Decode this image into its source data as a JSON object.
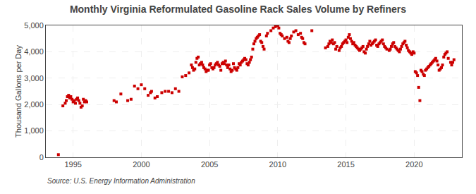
{
  "chart_data": {
    "type": "scatter",
    "title": "Monthly Virginia Reformulated Gasoline Rack Sales Volume by Refiners",
    "ylabel": "Thousand Gallons per Day",
    "annotations": [
      "Source: U.S. Energy Information Administration"
    ],
    "color": "#cc0000",
    "marker": "square",
    "grid": true,
    "xlim": [
      1993.0,
      2023.5
    ],
    "xticks": [
      1995,
      2000,
      2005,
      2010,
      2015,
      2020
    ],
    "ylim": [
      0,
      5000
    ],
    "yticks": [
      0,
      {
        "value": 1000,
        "label": "1,000"
      },
      {
        "value": 2000,
        "label": "2,000"
      },
      {
        "value": 3000,
        "label": "3,000"
      },
      {
        "value": 4000,
        "label": "4,000"
      },
      {
        "value": 5000,
        "label": "5,000"
      }
    ],
    "x": [
      1993.92,
      1994.25,
      1994.42,
      1994.5,
      1994.58,
      1994.67,
      1994.75,
      1994.83,
      1994.92,
      1995.0,
      1995.08,
      1995.17,
      1995.25,
      1995.33,
      1995.42,
      1995.5,
      1995.58,
      1995.67,
      1995.75,
      1995.83,
      1995.92,
      1996.0,
      1998.0,
      1998.17,
      1998.5,
      1999.0,
      1999.25,
      1999.5,
      1999.75,
      2000.0,
      2000.25,
      2000.5,
      2000.67,
      2000.75,
      2001.0,
      2001.17,
      2001.5,
      2001.75,
      2002.0,
      2002.25,
      2002.5,
      2002.75,
      2003.0,
      2003.25,
      2003.5,
      2003.67,
      2003.75,
      2003.83,
      2003.92,
      2004.0,
      2004.08,
      2004.17,
      2004.25,
      2004.33,
      2004.42,
      2004.5,
      2004.58,
      2004.67,
      2004.75,
      2004.83,
      2004.92,
      2005.0,
      2005.08,
      2005.17,
      2005.25,
      2005.33,
      2005.42,
      2005.5,
      2005.58,
      2005.67,
      2005.75,
      2005.83,
      2005.92,
      2006.0,
      2006.08,
      2006.17,
      2006.25,
      2006.33,
      2006.42,
      2006.5,
      2006.58,
      2006.67,
      2006.75,
      2006.83,
      2006.92,
      2007.0,
      2007.08,
      2007.17,
      2007.25,
      2007.33,
      2007.42,
      2007.5,
      2007.58,
      2007.67,
      2007.75,
      2007.83,
      2007.92,
      2008.0,
      2008.08,
      2008.17,
      2008.25,
      2008.33,
      2008.42,
      2008.5,
      2008.58,
      2008.67,
      2008.75,
      2008.83,
      2008.92,
      2009.0,
      2009.17,
      2009.25,
      2009.5,
      2009.67,
      2009.83,
      2010.0,
      2010.08,
      2010.17,
      2010.25,
      2010.33,
      2010.5,
      2010.67,
      2010.75,
      2010.83,
      2010.92,
      2011.0,
      2011.17,
      2011.33,
      2011.5,
      2011.67,
      2011.75,
      2011.83,
      2011.92,
      2012.0,
      2012.5,
      2013.5,
      2013.67,
      2013.75,
      2013.83,
      2013.92,
      2014.0,
      2014.08,
      2014.17,
      2014.25,
      2014.33,
      2014.5,
      2014.58,
      2014.67,
      2014.75,
      2014.83,
      2014.92,
      2015.0,
      2015.08,
      2015.17,
      2015.25,
      2015.33,
      2015.42,
      2015.5,
      2015.58,
      2015.67,
      2015.75,
      2015.83,
      2015.92,
      2016.0,
      2016.08,
      2016.17,
      2016.25,
      2016.33,
      2016.42,
      2016.5,
      2016.58,
      2016.67,
      2016.75,
      2016.83,
      2016.92,
      2017.0,
      2017.08,
      2017.17,
      2017.25,
      2017.33,
      2017.42,
      2017.5,
      2017.58,
      2017.67,
      2017.75,
      2017.83,
      2017.92,
      2018.0,
      2018.17,
      2018.25,
      2018.33,
      2018.42,
      2018.5,
      2018.58,
      2018.67,
      2018.75,
      2018.83,
      2018.92,
      2019.0,
      2019.08,
      2019.17,
      2019.25,
      2019.33,
      2019.42,
      2019.5,
      2019.58,
      2019.67,
      2019.75,
      2019.83,
      2019.92,
      2020.0,
      2020.08,
      2020.17,
      2020.25,
      2020.33,
      2020.42,
      2020.5,
      2020.58,
      2020.67,
      2020.75,
      2020.83,
      2020.92,
      2021.0,
      2021.08,
      2021.17,
      2021.25,
      2021.33,
      2021.42,
      2021.5,
      2021.58,
      2021.67,
      2021.75,
      2021.83,
      2021.92,
      2022.0,
      2022.08,
      2022.17,
      2022.25,
      2022.33,
      2022.42,
      2022.5,
      2022.67,
      2022.75,
      2022.83,
      2022.92
    ],
    "values": [
      100,
      1950,
      2050,
      2150,
      2300,
      2350,
      2250,
      2300,
      2200,
      2100,
      2150,
      2050,
      2200,
      2250,
      2150,
      2050,
      1900,
      1950,
      2200,
      2100,
      2150,
      2100,
      2150,
      2100,
      2400,
      2150,
      2200,
      2700,
      2600,
      2750,
      2600,
      2350,
      2450,
      2500,
      2250,
      2300,
      2450,
      2500,
      2500,
      2450,
      2600,
      2500,
      3050,
      3100,
      3200,
      3500,
      3400,
      3300,
      3350,
      3600,
      3750,
      3800,
      3500,
      3550,
      3600,
      3500,
      3400,
      3350,
      3250,
      3300,
      3300,
      3500,
      3550,
      3400,
      3350,
      3400,
      3500,
      3550,
      3600,
      3500,
      3450,
      3300,
      3550,
      3600,
      3550,
      3650,
      3500,
      3400,
      3500,
      3350,
      3250,
      3300,
      3550,
      3400,
      3350,
      3300,
      3400,
      3550,
      3500,
      3600,
      3650,
      3700,
      3750,
      3700,
      3550,
      3500,
      3600,
      3700,
      3800,
      4100,
      4300,
      4400,
      4500,
      4550,
      4600,
      4650,
      4400,
      4350,
      4200,
      4100,
      4600,
      4700,
      4800,
      4900,
      4950,
      5000,
      4900,
      4700,
      4650,
      4600,
      4500,
      4550,
      4400,
      4350,
      4500,
      4600,
      4750,
      4800,
      4650,
      4700,
      4550,
      4500,
      4350,
      4300,
      4800,
      4150,
      4200,
      4300,
      4400,
      4350,
      4450,
      4300,
      4350,
      4100,
      4200,
      4050,
      4150,
      4200,
      4300,
      4350,
      4400,
      4450,
      4350,
      4550,
      4650,
      4500,
      4400,
      4300,
      4350,
      4250,
      4200,
      4150,
      4100,
      4050,
      4100,
      4150,
      4200,
      4000,
      3950,
      4100,
      4200,
      4300,
      4400,
      4250,
      4300,
      4350,
      4400,
      4450,
      4250,
      4200,
      4300,
      4350,
      4400,
      4450,
      4300,
      4200,
      4150,
      4100,
      4050,
      4100,
      4200,
      4300,
      4350,
      4200,
      4150,
      4100,
      4050,
      4000,
      4100,
      4200,
      4300,
      4350,
      4400,
      4250,
      4150,
      4050,
      4000,
      3950,
      3900,
      4000,
      3950,
      3250,
      3200,
      3100,
      2650,
      2150,
      3300,
      3250,
      3150,
      3100,
      3300,
      3350,
      3400,
      3450,
      3500,
      3550,
      3600,
      3650,
      3700,
      3750,
      3650,
      3500,
      3300,
      3350,
      3400,
      3500,
      3800,
      3900,
      3950,
      4000,
      3750,
      3600,
      3500,
      3600,
      3700
    ]
  }
}
